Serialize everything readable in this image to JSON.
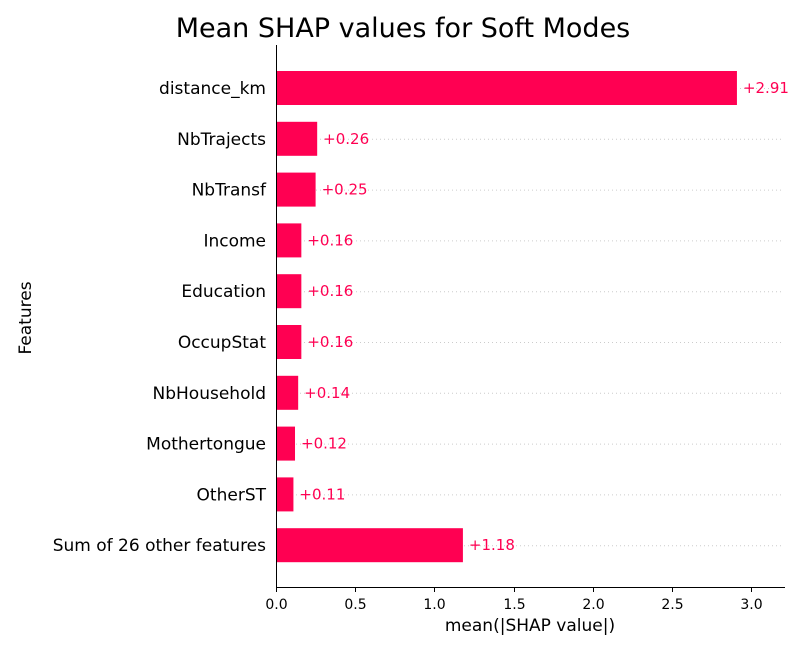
{
  "chart_data": {
    "type": "bar",
    "orientation": "horizontal",
    "title": "Mean SHAP values for Soft Modes",
    "xlabel": "mean(|SHAP value|)",
    "ylabel": "Features",
    "categories": [
      "distance_km",
      "NbTrajects",
      "NbTransf",
      "Income",
      "Education",
      "OccupStat",
      "NbHousehold",
      "Mothertongue",
      "OtherST",
      "Sum of 26 other features"
    ],
    "values": [
      2.91,
      0.26,
      0.25,
      0.16,
      0.16,
      0.16,
      0.14,
      0.12,
      0.11,
      1.18
    ],
    "value_labels": [
      "+2.91",
      "+0.26",
      "+0.25",
      "+0.16",
      "+0.16",
      "+0.16",
      "+0.14",
      "+0.12",
      "+0.11",
      "+1.18"
    ],
    "xticks": [
      0.0,
      0.5,
      1.0,
      1.5,
      2.0,
      2.5,
      3.0
    ],
    "xtick_labels": [
      "0.0",
      "0.5",
      "1.0",
      "1.5",
      "2.0",
      "2.5",
      "3.0"
    ],
    "xlim": [
      0,
      3.2
    ],
    "grid": "horizontal dotted",
    "bar_color": "#ff0052",
    "label_color": "#ff0052"
  }
}
